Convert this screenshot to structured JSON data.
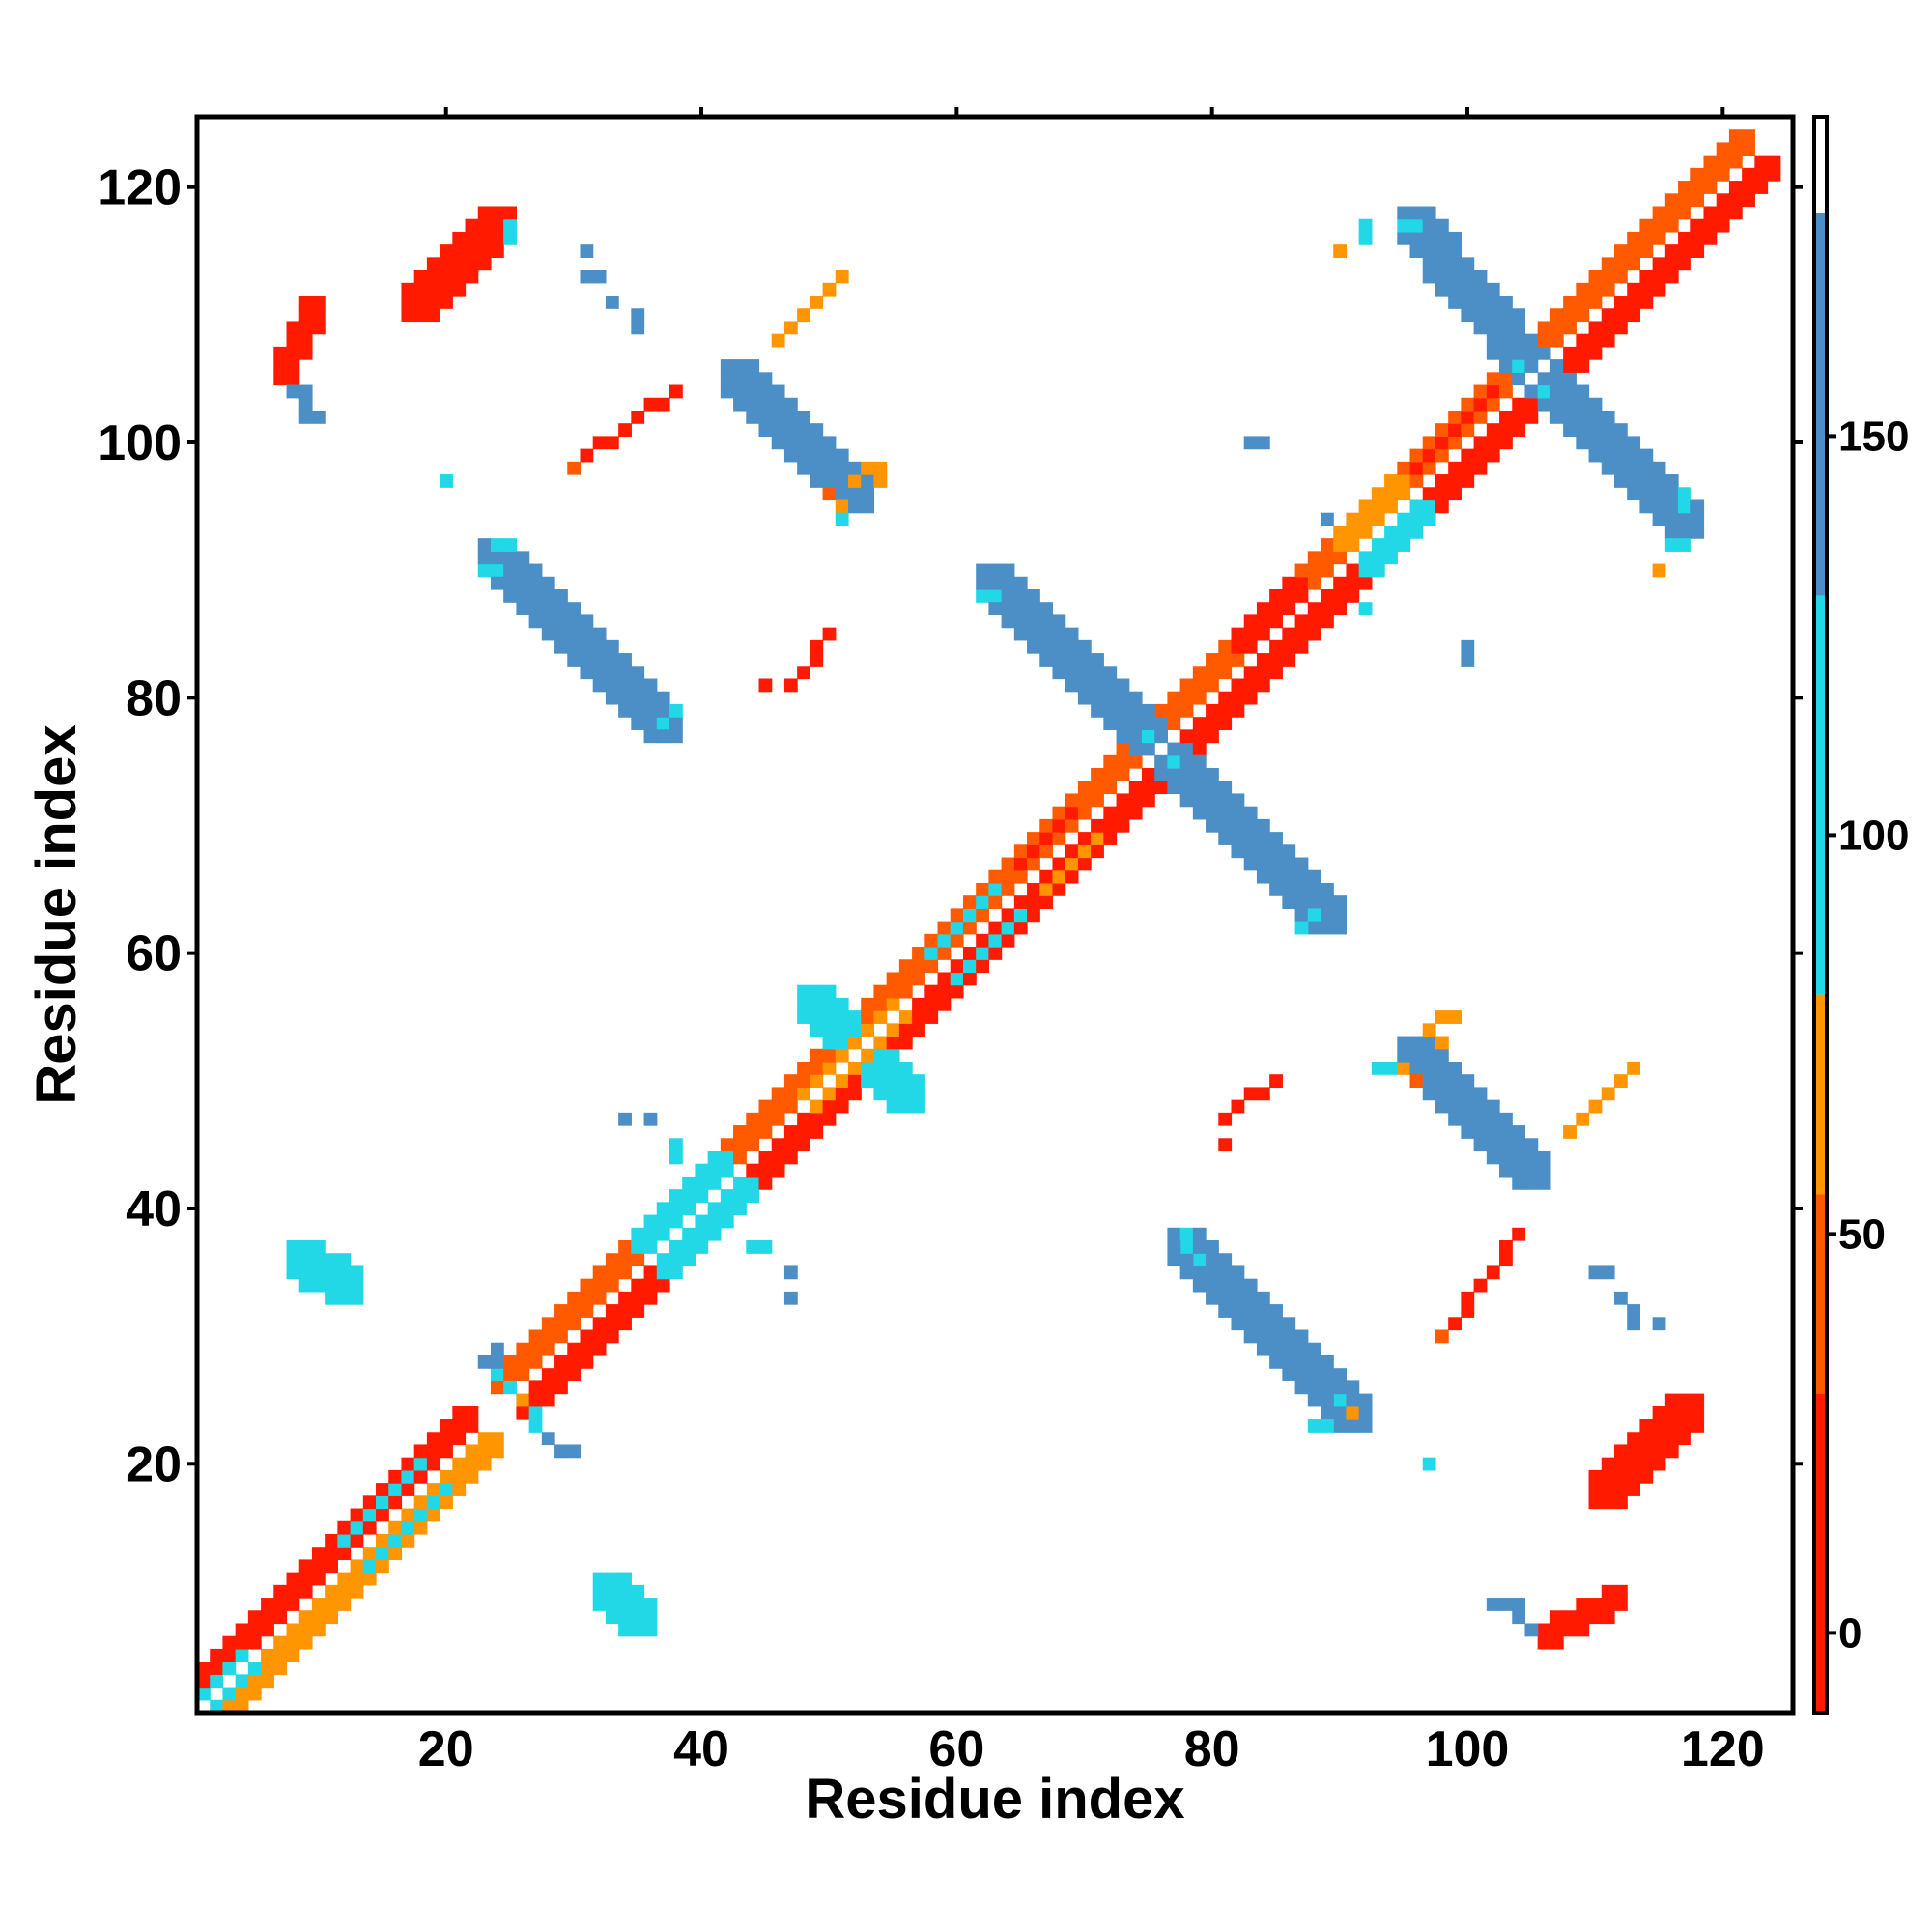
{
  "chart_data": {
    "type": "heatmap",
    "title": "",
    "xlabel": "Residue index",
    "ylabel": "Residue index",
    "xlim": [
      1,
      125
    ],
    "ylim": [
      1,
      125
    ],
    "xticks": [
      20,
      40,
      60,
      80,
      100,
      120
    ],
    "yticks": [
      20,
      40,
      60,
      80,
      100,
      120
    ],
    "grid": false,
    "colorbar": {
      "range": [
        -10,
        190
      ],
      "ticks": [
        0,
        50,
        100,
        150
      ],
      "bands": [
        {
          "from": -10,
          "to": 30,
          "color": "#ff1a00"
        },
        {
          "from": 30,
          "to": 55,
          "color": "#ff5a00"
        },
        {
          "from": 55,
          "to": 80,
          "color": "#ff9500"
        },
        {
          "from": 80,
          "to": 130,
          "color": "#22d8e6"
        },
        {
          "from": 130,
          "to": 178,
          "color": "#4b8fc6"
        },
        {
          "from": 178,
          "to": 190,
          "color": "#ffffff"
        }
      ]
    },
    "colors": {
      "red": "#ff1a00",
      "redorange": "#ff5a00",
      "orange": "#ff9500",
      "cyan": "#22d8e6",
      "blue": "#4b8fc6"
    },
    "main_diagonal": {
      "start": 1,
      "end": 124,
      "value": 180
    },
    "bands": [
      {
        "x0": 3,
        "y0": 1,
        "x1": 24,
        "y1": 22,
        "width": 2,
        "color": "orange",
        "side": "below"
      },
      {
        "x0": 1,
        "y0": 3,
        "x1": 22,
        "y1": 24,
        "width": 2,
        "color": "red",
        "side": "above"
      },
      {
        "x0": 27,
        "y0": 25,
        "x1": 76,
        "y1": 74,
        "width": 2,
        "color": "red",
        "side": "below"
      },
      {
        "x0": 25,
        "y0": 27,
        "x1": 74,
        "y1": 76,
        "width": 2,
        "color": "redorange",
        "side": "above"
      },
      {
        "x0": 77,
        "y0": 75,
        "x1": 124,
        "y1": 122,
        "width": 2,
        "color": "red",
        "side": "below"
      },
      {
        "x0": 75,
        "y0": 77,
        "x1": 122,
        "y1": 124,
        "width": 2,
        "color": "redorange",
        "side": "above"
      },
      {
        "x0": 1,
        "y0": 2,
        "x1": 4,
        "y1": 5,
        "width": 1,
        "color": "cyan",
        "side": "above"
      },
      {
        "x0": 2,
        "y0": 1,
        "x1": 5,
        "y1": 4,
        "width": 1,
        "color": "cyan",
        "side": "below"
      },
      {
        "x0": 12,
        "y0": 14,
        "x1": 18,
        "y1": 20,
        "width": 1,
        "color": "cyan",
        "side": "above"
      },
      {
        "x0": 14,
        "y0": 12,
        "x1": 20,
        "y1": 18,
        "width": 1,
        "color": "cyan",
        "side": "below"
      },
      {
        "x0": 36,
        "y0": 38,
        "x1": 42,
        "y1": 44,
        "width": 2,
        "color": "cyan",
        "side": "above"
      },
      {
        "x0": 38,
        "y0": 36,
        "x1": 44,
        "y1": 42,
        "width": 2,
        "color": "cyan",
        "side": "below"
      },
      {
        "x0": 58,
        "y0": 60,
        "x1": 63,
        "y1": 65,
        "width": 1,
        "color": "cyan",
        "side": "above"
      },
      {
        "x0": 60,
        "y0": 58,
        "x1": 65,
        "y1": 63,
        "width": 1,
        "color": "cyan",
        "side": "below"
      },
      {
        "x0": 91,
        "y0": 93,
        "x1": 95,
        "y1": 97,
        "width": 2,
        "color": "orange",
        "side": "above"
      },
      {
        "x0": 93,
        "y0": 91,
        "x1": 97,
        "y1": 95,
        "width": 2,
        "color": "cyan",
        "side": "below"
      },
      {
        "x0": 65,
        "y0": 67,
        "x1": 69,
        "y1": 71,
        "width": 1,
        "color": "red",
        "side": "above"
      },
      {
        "x0": 67,
        "y0": 65,
        "x1": 71,
        "y1": 69,
        "width": 1,
        "color": "orange",
        "side": "below"
      },
      {
        "x0": 83,
        "y0": 85,
        "x1": 87,
        "y1": 89,
        "width": 2,
        "color": "red",
        "side": "above"
      },
      {
        "x0": 85,
        "y0": 83,
        "x1": 89,
        "y1": 87,
        "width": 2,
        "color": "red",
        "side": "below"
      },
      {
        "x0": 96,
        "y0": 98,
        "x1": 102,
        "y1": 104,
        "width": 1,
        "color": "red",
        "side": "above"
      },
      {
        "x0": 98,
        "y0": 96,
        "x1": 104,
        "y1": 102,
        "width": 1,
        "color": "red",
        "side": "below"
      },
      {
        "x0": 24,
        "y0": 91,
        "x1": 37,
        "y1": 78,
        "width": 3,
        "color": "blue",
        "side": "center"
      },
      {
        "x0": 91,
        "y0": 24,
        "x1": 78,
        "y1": 37,
        "width": 3,
        "color": "blue",
        "side": "center"
      },
      {
        "x0": 63,
        "y0": 89,
        "x1": 76,
        "y1": 76,
        "width": 3,
        "color": "blue",
        "side": "center"
      },
      {
        "x0": 76,
        "y0": 76,
        "x1": 89,
        "y1": 63,
        "width": 3,
        "color": "blue",
        "side": "center"
      },
      {
        "x0": 96,
        "y0": 117,
        "x1": 105,
        "y1": 106,
        "width": 3,
        "color": "blue",
        "side": "center"
      },
      {
        "x0": 105,
        "y0": 106,
        "x1": 117,
        "y1": 94,
        "width": 3,
        "color": "blue",
        "side": "center"
      },
      {
        "x0": 43,
        "y0": 105,
        "x1": 52,
        "y1": 96,
        "width": 3,
        "color": "blue",
        "side": "center"
      },
      {
        "x0": 96,
        "y0": 52,
        "x1": 105,
        "y1": 43,
        "width": 3,
        "color": "blue",
        "side": "center"
      },
      {
        "x0": 49,
        "y0": 56,
        "x1": 56,
        "y1": 49,
        "width": 3,
        "color": "cyan",
        "side": "center"
      },
      {
        "x0": 49,
        "y0": 49,
        "x1": 56,
        "y1": 56,
        "width": 2,
        "color": "orange",
        "side": "center"
      },
      {
        "x0": 18,
        "y0": 111,
        "x1": 24,
        "y1": 117,
        "width": 3,
        "color": "red",
        "side": "center"
      },
      {
        "x0": 111,
        "y0": 18,
        "x1": 117,
        "y1": 24,
        "width": 3,
        "color": "red",
        "side": "center"
      },
      {
        "x0": 8,
        "y0": 106,
        "x1": 10,
        "y1": 111,
        "width": 2,
        "color": "red",
        "side": "center"
      },
      {
        "x0": 107,
        "y0": 7,
        "x1": 112,
        "y1": 10,
        "width": 2,
        "color": "red",
        "side": "center"
      },
      {
        "x0": 31,
        "y0": 99,
        "x1": 38,
        "y1": 104,
        "width": 1,
        "color": "red",
        "side": "center"
      },
      {
        "x0": 99,
        "y0": 31,
        "x1": 104,
        "y1": 38,
        "width": 1,
        "color": "red",
        "side": "center"
      },
      {
        "x0": 46,
        "y0": 108,
        "x1": 51,
        "y1": 113,
        "width": 1,
        "color": "orange",
        "side": "center"
      },
      {
        "x0": 108,
        "y0": 46,
        "x1": 113,
        "y1": 51,
        "width": 1,
        "color": "orange",
        "side": "center"
      },
      {
        "x0": 47,
        "y0": 81,
        "x1": 50,
        "y1": 85,
        "width": 1,
        "color": "red",
        "side": "center"
      },
      {
        "x0": 81,
        "y0": 47,
        "x1": 85,
        "y1": 50,
        "width": 1,
        "color": "red",
        "side": "center"
      },
      {
        "x0": 9,
        "y0": 36,
        "x1": 12,
        "y1": 34,
        "width": 3,
        "color": "cyan",
        "side": "center"
      },
      {
        "x0": 33,
        "y0": 10,
        "x1": 35,
        "y1": 8,
        "width": 3,
        "color": "cyan",
        "side": "center"
      }
    ],
    "points": [
      {
        "x": 24,
        "y": 29,
        "color": "blue"
      },
      {
        "x": 24,
        "y": 28,
        "color": "blue"
      },
      {
        "x": 29,
        "y": 21,
        "color": "blue"
      },
      {
        "x": 30,
        "y": 21,
        "color": "blue"
      },
      {
        "x": 28,
        "y": 22,
        "color": "blue"
      },
      {
        "x": 27,
        "y": 23,
        "color": "cyan"
      },
      {
        "x": 27,
        "y": 24,
        "color": "cyan"
      },
      {
        "x": 24,
        "y": 27,
        "color": "cyan"
      },
      {
        "x": 25,
        "y": 26,
        "color": "cyan"
      },
      {
        "x": 23,
        "y": 28,
        "color": "blue"
      },
      {
        "x": 34,
        "y": 47,
        "color": "blue"
      },
      {
        "x": 36,
        "y": 47,
        "color": "blue"
      },
      {
        "x": 38,
        "y": 45,
        "color": "cyan"
      },
      {
        "x": 38,
        "y": 44,
        "color": "cyan"
      },
      {
        "x": 44,
        "y": 37,
        "color": "cyan"
      },
      {
        "x": 45,
        "y": 37,
        "color": "cyan"
      },
      {
        "x": 47,
        "y": 35,
        "color": "blue"
      },
      {
        "x": 47,
        "y": 33,
        "color": "blue"
      },
      {
        "x": 31,
        "y": 115,
        "color": "blue"
      },
      {
        "x": 31,
        "y": 113,
        "color": "blue"
      },
      {
        "x": 32,
        "y": 113,
        "color": "blue"
      },
      {
        "x": 33,
        "y": 111,
        "color": "blue"
      },
      {
        "x": 35,
        "y": 109,
        "color": "blue"
      },
      {
        "x": 35,
        "y": 110,
        "color": "blue"
      },
      {
        "x": 8,
        "y": 104,
        "color": "blue"
      },
      {
        "x": 9,
        "y": 104,
        "color": "blue"
      },
      {
        "x": 9,
        "y": 103,
        "color": "blue"
      },
      {
        "x": 9,
        "y": 102,
        "color": "blue"
      },
      {
        "x": 10,
        "y": 102,
        "color": "blue"
      },
      {
        "x": 20,
        "y": 97,
        "color": "cyan"
      },
      {
        "x": 25,
        "y": 117,
        "color": "cyan"
      },
      {
        "x": 25,
        "y": 116,
        "color": "cyan"
      },
      {
        "x": 83,
        "y": 100,
        "color": "blue"
      },
      {
        "x": 84,
        "y": 100,
        "color": "blue"
      },
      {
        "x": 89,
        "y": 94,
        "color": "blue"
      },
      {
        "x": 92,
        "y": 87,
        "color": "cyan"
      },
      {
        "x": 92,
        "y": 116,
        "color": "cyan"
      },
      {
        "x": 92,
        "y": 117,
        "color": "cyan"
      },
      {
        "x": 90,
        "y": 115,
        "color": "orange"
      },
      {
        "x": 100,
        "y": 83,
        "color": "blue"
      },
      {
        "x": 100,
        "y": 84,
        "color": "blue"
      },
      {
        "x": 117,
        "y": 92,
        "color": "cyan"
      },
      {
        "x": 116,
        "y": 92,
        "color": "cyan"
      },
      {
        "x": 115,
        "y": 90,
        "color": "orange"
      },
      {
        "x": 110,
        "y": 35,
        "color": "blue"
      },
      {
        "x": 111,
        "y": 35,
        "color": "blue"
      },
      {
        "x": 112,
        "y": 33,
        "color": "blue"
      },
      {
        "x": 113,
        "y": 31,
        "color": "blue"
      },
      {
        "x": 115,
        "y": 31,
        "color": "blue"
      },
      {
        "x": 113,
        "y": 32,
        "color": "blue"
      },
      {
        "x": 97,
        "y": 20,
        "color": "cyan"
      },
      {
        "x": 103,
        "y": 9,
        "color": "blue"
      },
      {
        "x": 104,
        "y": 8,
        "color": "blue"
      },
      {
        "x": 104,
        "y": 9,
        "color": "blue"
      },
      {
        "x": 102,
        "y": 9,
        "color": "blue"
      },
      {
        "x": 105,
        "y": 7,
        "color": "blue"
      },
      {
        "x": 51,
        "y": 95,
        "color": "orange"
      },
      {
        "x": 50,
        "y": 96,
        "color": "redorange"
      },
      {
        "x": 51,
        "y": 94,
        "color": "cyan"
      },
      {
        "x": 52,
        "y": 97,
        "color": "orange"
      },
      {
        "x": 53,
        "y": 98,
        "color": "orange"
      },
      {
        "x": 54,
        "y": 97,
        "color": "orange"
      },
      {
        "x": 54,
        "y": 98,
        "color": "orange"
      },
      {
        "x": 95,
        "y": 51,
        "color": "orange"
      },
      {
        "x": 96,
        "y": 50,
        "color": "redorange"
      },
      {
        "x": 94,
        "y": 51,
        "color": "cyan"
      },
      {
        "x": 98,
        "y": 53,
        "color": "orange"
      },
      {
        "x": 97,
        "y": 54,
        "color": "orange"
      },
      {
        "x": 98,
        "y": 55,
        "color": "orange"
      },
      {
        "x": 99,
        "y": 55,
        "color": "orange"
      },
      {
        "x": 30,
        "y": 98,
        "color": "redorange"
      },
      {
        "x": 81,
        "y": 45,
        "color": "red"
      },
      {
        "x": 98,
        "y": 30,
        "color": "redorange"
      },
      {
        "x": 45,
        "y": 81,
        "color": "red"
      },
      {
        "x": 88,
        "y": 23,
        "color": "cyan"
      },
      {
        "x": 89,
        "y": 23,
        "color": "cyan"
      },
      {
        "x": 91,
        "y": 24,
        "color": "orange"
      },
      {
        "x": 90,
        "y": 25,
        "color": "cyan"
      },
      {
        "x": 37,
        "y": 78,
        "color": "cyan"
      },
      {
        "x": 38,
        "y": 79,
        "color": "cyan"
      },
      {
        "x": 24,
        "y": 90,
        "color": "cyan"
      },
      {
        "x": 23,
        "y": 90,
        "color": "cyan"
      },
      {
        "x": 24,
        "y": 92,
        "color": "cyan"
      },
      {
        "x": 25,
        "y": 92,
        "color": "cyan"
      },
      {
        "x": 63,
        "y": 88,
        "color": "cyan"
      },
      {
        "x": 62,
        "y": 88,
        "color": "cyan"
      },
      {
        "x": 88,
        "y": 63,
        "color": "cyan"
      },
      {
        "x": 87,
        "y": 62,
        "color": "cyan"
      },
      {
        "x": 78,
        "y": 37,
        "color": "cyan"
      },
      {
        "x": 78,
        "y": 38,
        "color": "cyan"
      },
      {
        "x": 79,
        "y": 36,
        "color": "cyan"
      },
      {
        "x": 93,
        "y": 51,
        "color": "cyan"
      },
      {
        "x": 96,
        "y": 117,
        "color": "cyan"
      },
      {
        "x": 95,
        "y": 117,
        "color": "cyan"
      },
      {
        "x": 117,
        "y": 96,
        "color": "cyan"
      },
      {
        "x": 117,
        "y": 95,
        "color": "cyan"
      },
      {
        "x": 104,
        "y": 104,
        "color": "cyan"
      },
      {
        "x": 105,
        "y": 105,
        "color": "cyan"
      },
      {
        "x": 106,
        "y": 106,
        "color": "cyan"
      },
      {
        "x": 104,
        "y": 106,
        "color": "cyan"
      },
      {
        "x": 106,
        "y": 104,
        "color": "cyan"
      },
      {
        "x": 75,
        "y": 75,
        "color": "cyan"
      },
      {
        "x": 76,
        "y": 76,
        "color": "cyan"
      },
      {
        "x": 77,
        "y": 77,
        "color": "cyan"
      },
      {
        "x": 75,
        "y": 77,
        "color": "cyan"
      },
      {
        "x": 77,
        "y": 75,
        "color": "cyan"
      },
      {
        "x": 26,
        "y": 26,
        "color": "orange"
      },
      {
        "x": 26,
        "y": 25,
        "color": "orange"
      },
      {
        "x": 25,
        "y": 25,
        "color": "orange"
      }
    ]
  }
}
